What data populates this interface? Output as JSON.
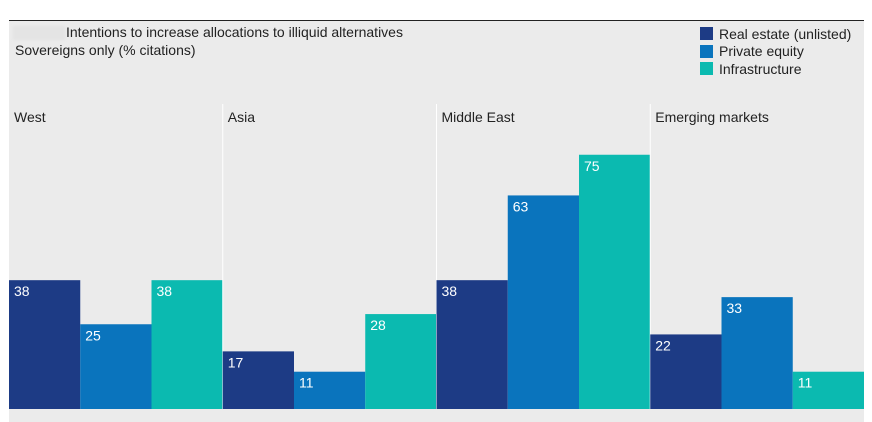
{
  "chart_data": {
    "type": "bar",
    "title": "Intentions to increase allocations to illiquid alternatives",
    "subtitle": "Sovereigns only (% citations)",
    "categories": [
      "West",
      "Asia",
      "Middle East",
      "Emerging markets"
    ],
    "series": [
      {
        "name": "Real estate (unlisted)",
        "color": "#1d3b85",
        "values": [
          38,
          17,
          38,
          22
        ]
      },
      {
        "name": "Private equity",
        "color": "#0a74bd",
        "values": [
          25,
          11,
          63,
          33
        ]
      },
      {
        "name": "Infrastructure",
        "color": "#0bbab0",
        "values": [
          38,
          28,
          75,
          11
        ]
      }
    ],
    "ylim": [
      0,
      100
    ],
    "grid": false,
    "legend_position": "top-right",
    "value_labels": true
  }
}
